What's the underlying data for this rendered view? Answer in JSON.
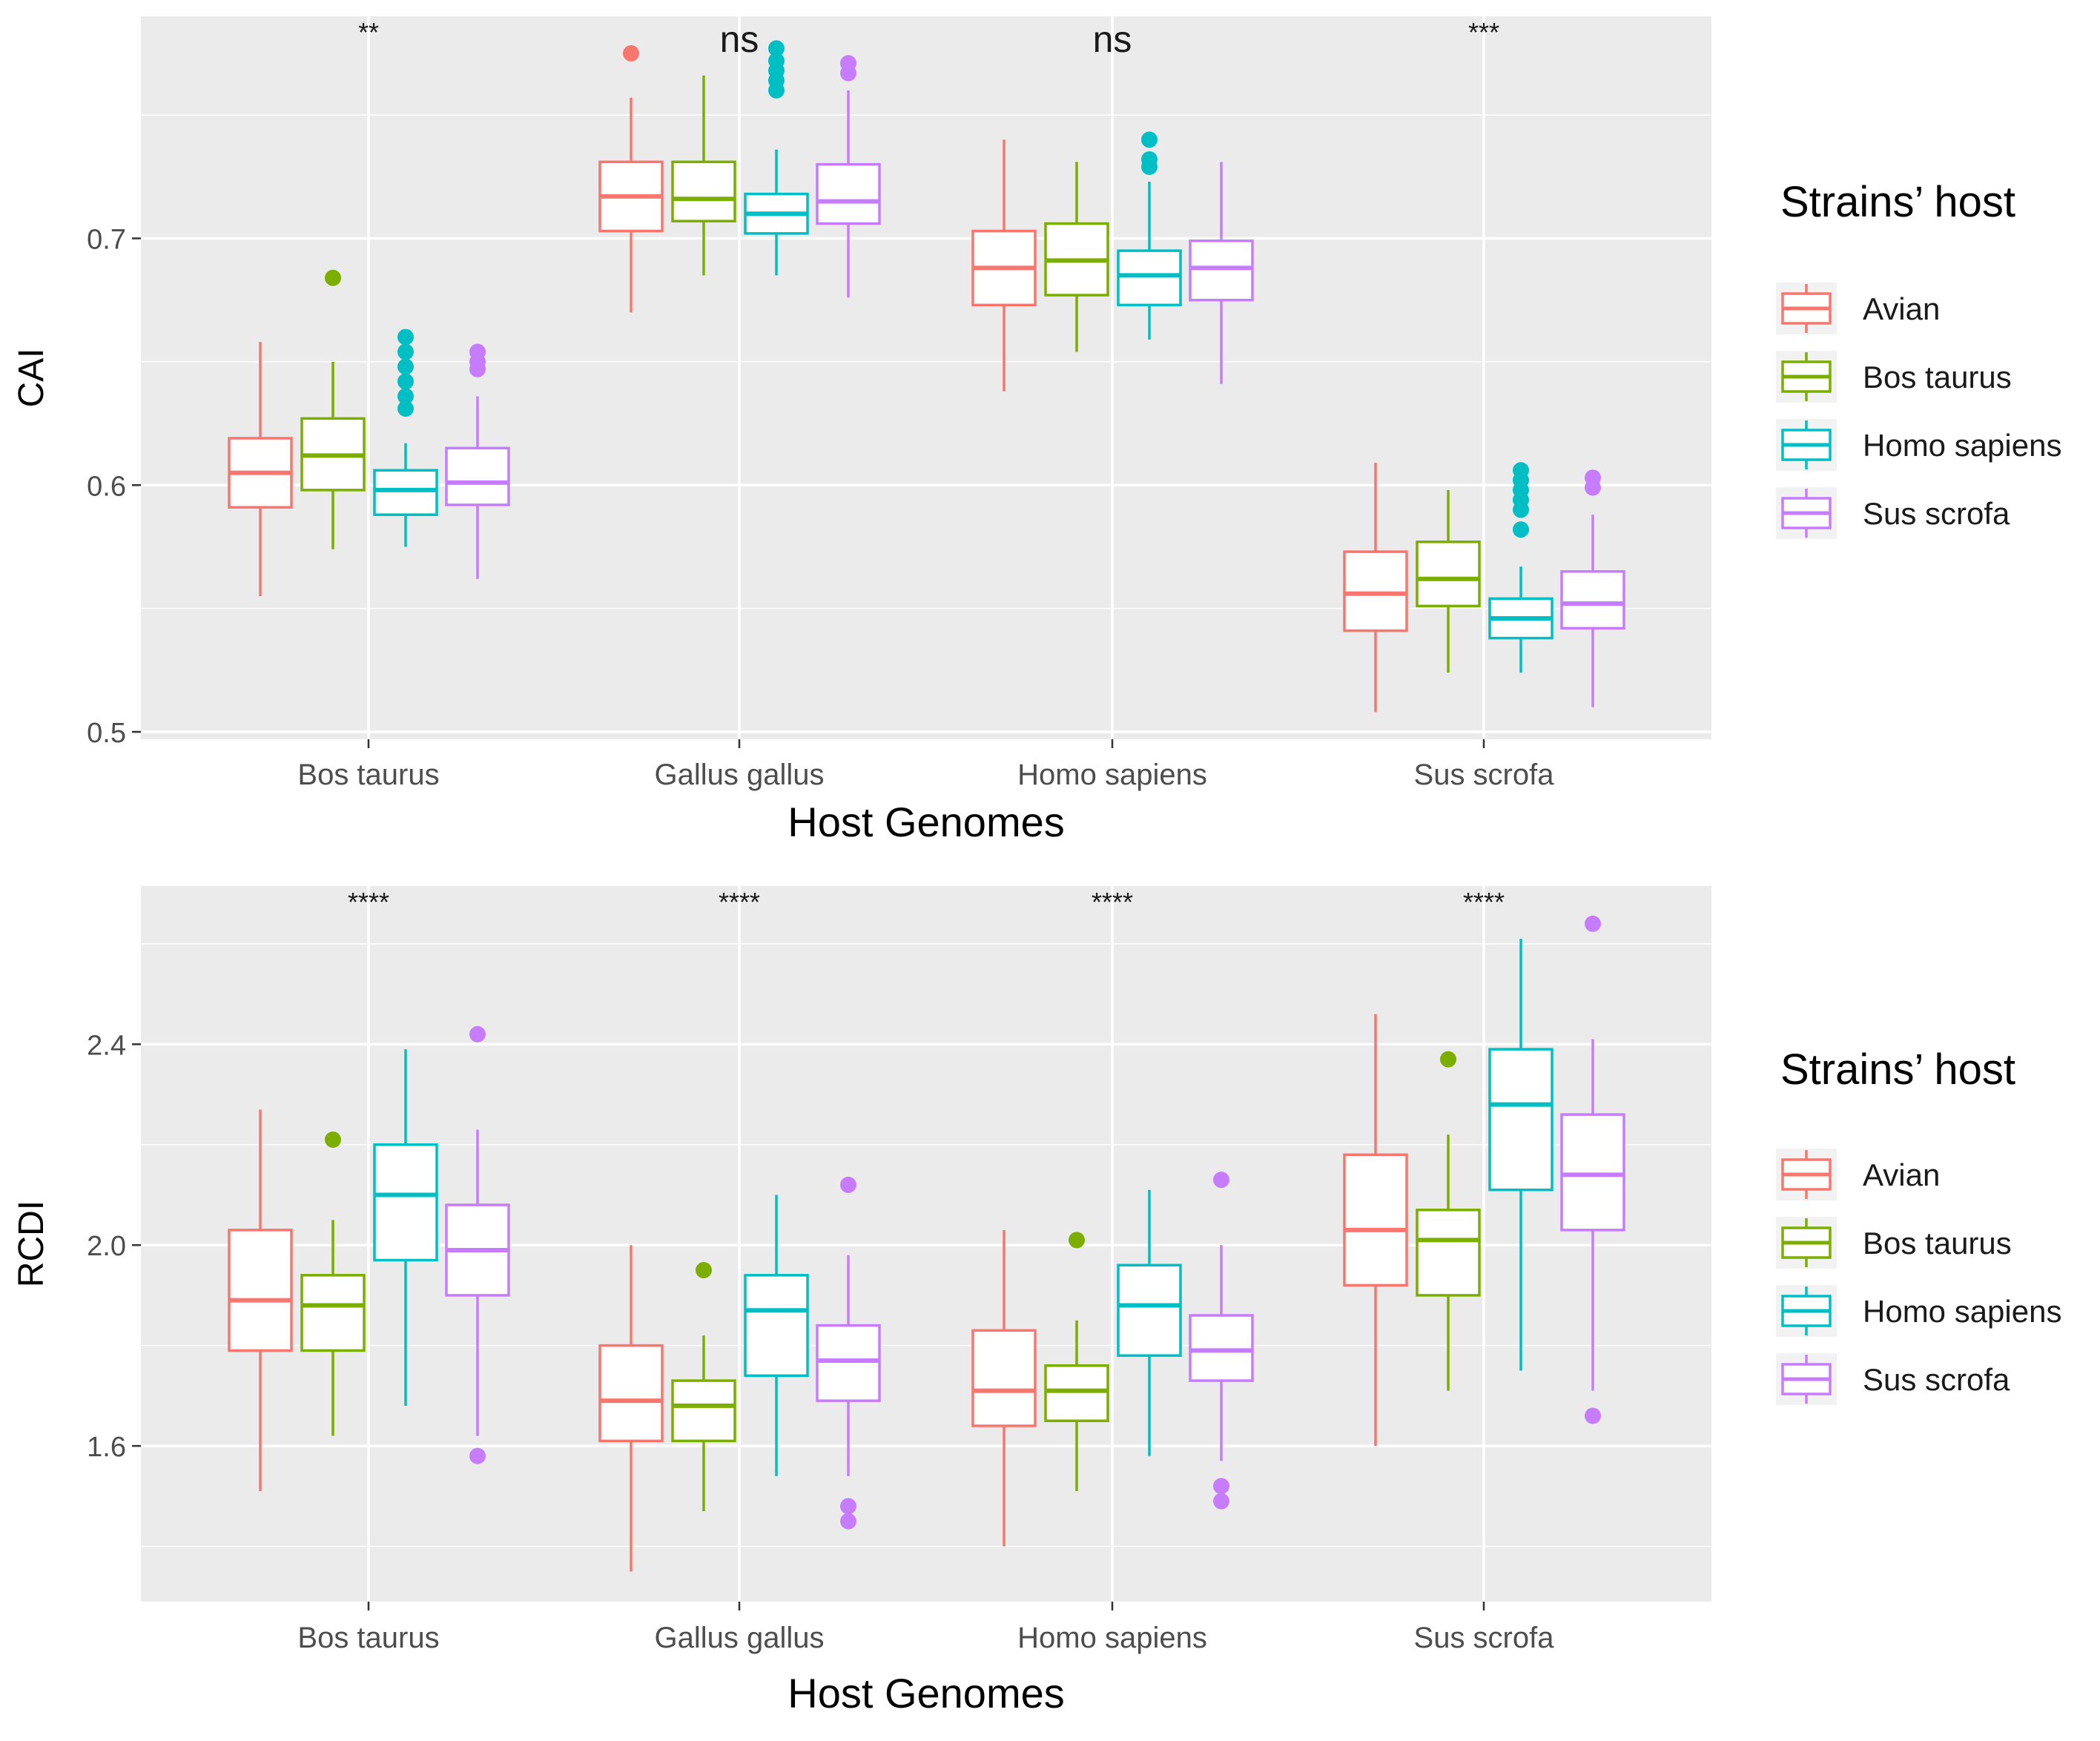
{
  "chart_data": [
    {
      "type": "box",
      "id": "cai",
      "ylabel": "CAI",
      "xlabel": "Host Genomes",
      "ylim": [
        0.497,
        0.79
      ],
      "yticks": [
        0.5,
        0.6,
        0.7
      ],
      "ytick_labels": [
        "0.5",
        "0.6",
        "0.7"
      ],
      "categories": [
        "Bos taurus",
        "Gallus gallus",
        "Homo sapiens",
        "Sus scrofa"
      ],
      "significance": [
        "**",
        "ns",
        "ns",
        "***"
      ],
      "legend_title": "Strains’ host",
      "series": [
        {
          "name": "Avian",
          "color": "#F8766D",
          "boxes": [
            {
              "whislo": 0.555,
              "q1": 0.591,
              "med": 0.605,
              "q3": 0.619,
              "whishi": 0.658,
              "fliers": []
            },
            {
              "whislo": 0.67,
              "q1": 0.703,
              "med": 0.717,
              "q3": 0.731,
              "whishi": 0.757,
              "fliers": [
                0.775
              ]
            },
            {
              "whislo": 0.638,
              "q1": 0.673,
              "med": 0.688,
              "q3": 0.703,
              "whishi": 0.74,
              "fliers": []
            },
            {
              "whislo": 0.508,
              "q1": 0.541,
              "med": 0.556,
              "q3": 0.573,
              "whishi": 0.609,
              "fliers": []
            }
          ]
        },
        {
          "name": "Bos taurus",
          "color": "#7CAE00",
          "boxes": [
            {
              "whislo": 0.574,
              "q1": 0.598,
              "med": 0.612,
              "q3": 0.627,
              "whishi": 0.65,
              "fliers": [
                0.684
              ]
            },
            {
              "whislo": 0.685,
              "q1": 0.707,
              "med": 0.716,
              "q3": 0.731,
              "whishi": 0.766,
              "fliers": []
            },
            {
              "whislo": 0.654,
              "q1": 0.677,
              "med": 0.691,
              "q3": 0.706,
              "whishi": 0.731,
              "fliers": []
            },
            {
              "whislo": 0.524,
              "q1": 0.551,
              "med": 0.562,
              "q3": 0.577,
              "whishi": 0.598,
              "fliers": []
            }
          ]
        },
        {
          "name": "Homo sapiens",
          "color": "#00BFC4",
          "boxes": [
            {
              "whislo": 0.575,
              "q1": 0.588,
              "med": 0.598,
              "q3": 0.606,
              "whishi": 0.617,
              "fliers": [
                0.631,
                0.636,
                0.642,
                0.648,
                0.654,
                0.66
              ]
            },
            {
              "whislo": 0.685,
              "q1": 0.702,
              "med": 0.71,
              "q3": 0.718,
              "whishi": 0.736,
              "fliers": [
                0.76,
                0.764,
                0.768,
                0.772,
                0.777
              ]
            },
            {
              "whislo": 0.659,
              "q1": 0.673,
              "med": 0.685,
              "q3": 0.695,
              "whishi": 0.723,
              "fliers": [
                0.729,
                0.732,
                0.74
              ]
            },
            {
              "whislo": 0.524,
              "q1": 0.538,
              "med": 0.546,
              "q3": 0.554,
              "whishi": 0.567,
              "fliers": [
                0.582,
                0.59,
                0.594,
                0.598,
                0.602,
                0.606
              ]
            }
          ]
        },
        {
          "name": "Sus scrofa",
          "color": "#C77CFF",
          "boxes": [
            {
              "whislo": 0.562,
              "q1": 0.592,
              "med": 0.601,
              "q3": 0.615,
              "whishi": 0.636,
              "fliers": [
                0.647,
                0.65,
                0.654
              ]
            },
            {
              "whislo": 0.676,
              "q1": 0.706,
              "med": 0.715,
              "q3": 0.73,
              "whishi": 0.76,
              "fliers": [
                0.767,
                0.771
              ]
            },
            {
              "whislo": 0.641,
              "q1": 0.675,
              "med": 0.688,
              "q3": 0.699,
              "whishi": 0.731,
              "fliers": []
            },
            {
              "whislo": 0.51,
              "q1": 0.542,
              "med": 0.552,
              "q3": 0.565,
              "whishi": 0.588,
              "fliers": [
                0.599,
                0.603
              ]
            }
          ]
        }
      ]
    },
    {
      "type": "box",
      "id": "rcdi",
      "ylabel": "RCDI",
      "xlabel": "Host Genomes",
      "ylim": [
        1.29,
        2.715
      ],
      "yticks": [
        1.6,
        2.0,
        2.4
      ],
      "ytick_labels": [
        "1.6",
        "2.0",
        "2.4"
      ],
      "categories": [
        "Bos taurus",
        "Gallus gallus",
        "Homo sapiens",
        "Sus scrofa"
      ],
      "significance": [
        "****",
        "****",
        "****",
        "****"
      ],
      "legend_title": "Strains’ host",
      "series": [
        {
          "name": "Avian",
          "color": "#F8766D",
          "boxes": [
            {
              "whislo": 1.51,
              "q1": 1.79,
              "med": 1.89,
              "q3": 2.03,
              "whishi": 2.27,
              "fliers": []
            },
            {
              "whislo": 1.35,
              "q1": 1.61,
              "med": 1.69,
              "q3": 1.8,
              "whishi": 2.0,
              "fliers": []
            },
            {
              "whislo": 1.4,
              "q1": 1.64,
              "med": 1.71,
              "q3": 1.83,
              "whishi": 2.03,
              "fliers": []
            },
            {
              "whislo": 1.6,
              "q1": 1.92,
              "med": 2.03,
              "q3": 2.18,
              "whishi": 2.46,
              "fliers": []
            }
          ]
        },
        {
          "name": "Bos taurus",
          "color": "#7CAE00",
          "boxes": [
            {
              "whislo": 1.62,
              "q1": 1.79,
              "med": 1.88,
              "q3": 1.94,
              "whishi": 2.05,
              "fliers": [
                2.21
              ]
            },
            {
              "whislo": 1.47,
              "q1": 1.61,
              "med": 1.68,
              "q3": 1.73,
              "whishi": 1.82,
              "fliers": [
                1.95
              ]
            },
            {
              "whislo": 1.51,
              "q1": 1.65,
              "med": 1.71,
              "q3": 1.76,
              "whishi": 1.85,
              "fliers": [
                2.01
              ]
            },
            {
              "whislo": 1.71,
              "q1": 1.9,
              "med": 2.01,
              "q3": 2.07,
              "whishi": 2.22,
              "fliers": [
                2.37
              ]
            }
          ]
        },
        {
          "name": "Homo sapiens",
          "color": "#00BFC4",
          "boxes": [
            {
              "whislo": 1.68,
              "q1": 1.97,
              "med": 2.1,
              "q3": 2.2,
              "whishi": 2.39,
              "fliers": []
            },
            {
              "whislo": 1.54,
              "q1": 1.74,
              "med": 1.87,
              "q3": 1.94,
              "whishi": 2.1,
              "fliers": []
            },
            {
              "whislo": 1.58,
              "q1": 1.78,
              "med": 1.88,
              "q3": 1.96,
              "whishi": 2.11,
              "fliers": []
            },
            {
              "whislo": 1.75,
              "q1": 2.11,
              "med": 2.28,
              "q3": 2.39,
              "whishi": 2.61,
              "fliers": []
            }
          ]
        },
        {
          "name": "Sus scrofa",
          "color": "#C77CFF",
          "boxes": [
            {
              "whislo": 1.62,
              "q1": 1.9,
              "med": 1.99,
              "q3": 2.08,
              "whishi": 2.23,
              "fliers": [
                1.58,
                2.42
              ]
            },
            {
              "whislo": 1.54,
              "q1": 1.69,
              "med": 1.77,
              "q3": 1.84,
              "whishi": 1.98,
              "fliers": [
                1.45,
                1.48,
                2.12
              ]
            },
            {
              "whislo": 1.57,
              "q1": 1.73,
              "med": 1.79,
              "q3": 1.86,
              "whishi": 2.0,
              "fliers": [
                1.49,
                1.52,
                2.13
              ]
            },
            {
              "whislo": 1.71,
              "q1": 2.03,
              "med": 2.14,
              "q3": 2.26,
              "whishi": 2.41,
              "fliers": [
                1.66,
                2.64
              ]
            }
          ]
        }
      ]
    }
  ]
}
